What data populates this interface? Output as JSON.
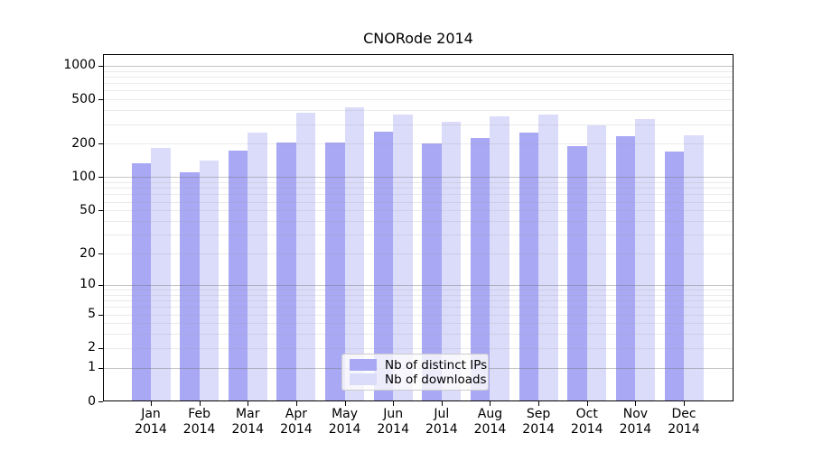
{
  "title": "CNORode 2014",
  "chart_data": {
    "type": "bar",
    "title": "CNORode 2014",
    "categories": [
      "Jan 2014",
      "Feb 2014",
      "Mar 2014",
      "Apr 2014",
      "May 2014",
      "Jun 2014",
      "Jul 2014",
      "Aug 2014",
      "Sep 2014",
      "Oct 2014",
      "Nov 2014",
      "Dec 2014"
    ],
    "month_labels": [
      {
        "top": "Jan",
        "bottom": "2014"
      },
      {
        "top": "Feb",
        "bottom": "2014"
      },
      {
        "top": "Mar",
        "bottom": "2014"
      },
      {
        "top": "Apr",
        "bottom": "2014"
      },
      {
        "top": "May",
        "bottom": "2014"
      },
      {
        "top": "Jun",
        "bottom": "2014"
      },
      {
        "top": "Jul",
        "bottom": "2014"
      },
      {
        "top": "Aug",
        "bottom": "2014"
      },
      {
        "top": "Sep",
        "bottom": "2014"
      },
      {
        "top": "Oct",
        "bottom": "2014"
      },
      {
        "top": "Nov",
        "bottom": "2014"
      },
      {
        "top": "Dec",
        "bottom": "2014"
      }
    ],
    "series": [
      {
        "name": "Nb of distinct IPs",
        "color": "#a8a8f5",
        "values": [
          134,
          110,
          172,
          204,
          206,
          259,
          203,
          224,
          252,
          189,
          232,
          170
        ]
      },
      {
        "name": "Nb of downloads",
        "color": "#dbdbfa",
        "values": [
          184,
          141,
          253,
          382,
          428,
          369,
          313,
          355,
          363,
          292,
          333,
          239
        ]
      }
    ],
    "yscale": "log10(value+1)",
    "yticks": [
      0,
      1,
      2,
      5,
      10,
      20,
      50,
      100,
      200,
      500,
      1000
    ],
    "major_gridline_values": [
      1,
      10,
      100,
      1000
    ],
    "ylim": [
      0,
      1230
    ],
    "xlabel": "",
    "ylabel": "",
    "grid": "horizontal",
    "legend_position": "inside-bottom-center",
    "colors": {
      "axis": "#000000",
      "background": "#ffffff",
      "major_grid": "#c5c5c5",
      "minor_grid": "#eaeaea"
    }
  }
}
